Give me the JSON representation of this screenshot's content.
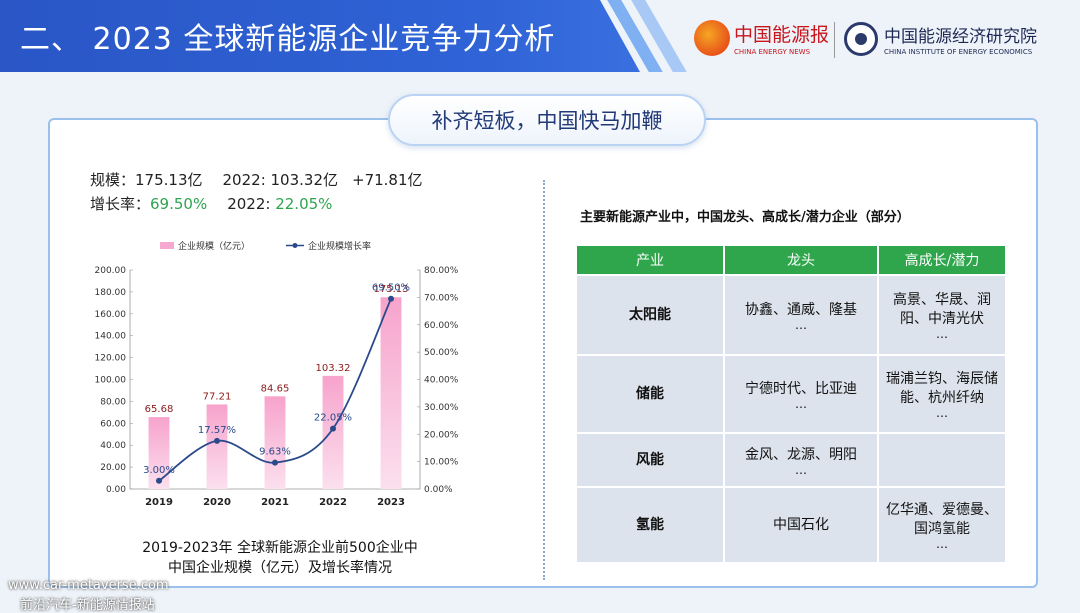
{
  "header": {
    "title": "二、 2023 全球新能源企业竞争力分析",
    "logo1_name": "中国能源报",
    "logo1_sub": "CHINA ENERGY NEWS",
    "logo2_name": "中国能源经济研究院",
    "logo2_sub": "CHINA INSTITUTE OF ENERGY ECONOMICS"
  },
  "banner": "补齐短板，中国快马加鞭",
  "stats": {
    "scale_label": "规模：",
    "scale_value": "175.13亿",
    "scale_prev": "2022: 103.32亿",
    "scale_delta": "+71.81亿",
    "growth_label": "增长率：",
    "growth_value": "69.50%",
    "growth_prev_label": "2022: ",
    "growth_prev": "22.05%"
  },
  "chart_data": {
    "type": "bar",
    "categories": [
      "2019",
      "2020",
      "2021",
      "2022",
      "2023"
    ],
    "series": [
      {
        "name": "企业规模（亿元）",
        "type": "bar",
        "axis": "left",
        "values": [
          65.68,
          77.21,
          84.65,
          103.32,
          175.13
        ],
        "labels": [
          "65.68",
          "77.21",
          "84.65",
          "103.32",
          "175.13"
        ]
      },
      {
        "name": "企业规模增长率",
        "type": "line",
        "axis": "right",
        "values": [
          3.0,
          17.57,
          9.63,
          22.05,
          69.5
        ],
        "labels": [
          "3.00%",
          "17.57%",
          "9.63%",
          "22.05%",
          "69.50%"
        ]
      }
    ],
    "left_axis": {
      "ticks": [
        "0.00",
        "20.00",
        "40.00",
        "60.00",
        "80.00",
        "100.00",
        "120.00",
        "140.00",
        "160.00",
        "180.00",
        "200.00"
      ],
      "ylim": [
        0,
        200
      ]
    },
    "right_axis": {
      "ticks": [
        "0.00%",
        "10.00%",
        "20.00%",
        "30.00%",
        "40.00%",
        "50.00%",
        "60.00%",
        "70.00%",
        "80.00%"
      ],
      "ylim": [
        0,
        80
      ]
    },
    "legend": "top",
    "grid": true,
    "colors": {
      "bar": "#f7a8cf",
      "line": "#2a4a8c",
      "bar_label": "#8b1a1a",
      "line_label": "#2a4a8c"
    }
  },
  "chart_caption_1": "2019-2023年 全球新能源企业前500企业中",
  "chart_caption_2": "中国企业规模（亿元）及增长率情况",
  "table": {
    "title": "主要新能源产业中，中国龙头、高成长/潜力企业（部分）",
    "headers": [
      "产业",
      "龙头",
      "高成长/潜力"
    ],
    "rows": [
      {
        "industry": "太阳能",
        "leader": "协鑫、通威、隆基",
        "leader_more": "…",
        "growth": "高景、华晟、润阳、中清光伏",
        "growth_more": "…"
      },
      {
        "industry": "储能",
        "leader": "宁德时代、比亚迪",
        "leader_more": "…",
        "growth": "瑞浦兰钧、海辰储能、杭州纤纳",
        "growth_more": "…"
      },
      {
        "industry": "风能",
        "leader": "金风、龙源、明阳",
        "leader_more": "…",
        "growth": "",
        "growth_more": ""
      },
      {
        "industry": "氢能",
        "leader": "中国石化",
        "leader_more": "",
        "growth": "亿华通、爱德曼、国鸿氢能",
        "growth_more": "…"
      }
    ]
  },
  "watermark": {
    "line1": "www.car-metaverse.com",
    "line2": "前沿汽车-新能源情报站"
  }
}
